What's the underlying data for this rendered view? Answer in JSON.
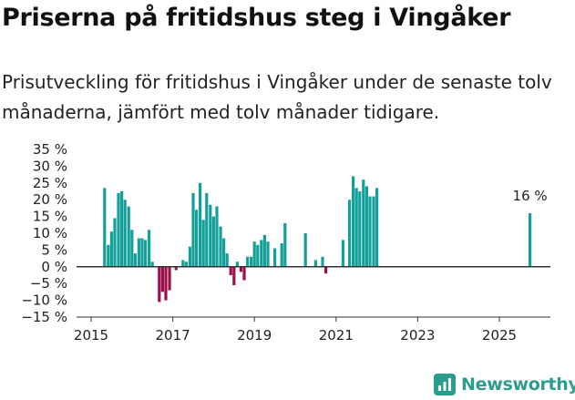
{
  "header": {
    "title": "Priserna på fritidshus steg i Vingåker",
    "subtitle": "Prisutveckling för fritidshus i Vingåker under de senaste tolv månaderna, jämfört med tolv månader tidigare."
  },
  "brand": {
    "name": "Newsworthy"
  },
  "chart_data": {
    "type": "bar",
    "x_unit": "year",
    "ylim": [
      -15,
      35
    ],
    "yticks": [
      -15,
      -10,
      -5,
      0,
      5,
      10,
      15,
      20,
      25,
      30,
      35
    ],
    "ytick_labels": [
      "−15 %",
      "−10 %",
      "−5 %",
      "0 %",
      "5 %",
      "10 %",
      "15 %",
      "20 %",
      "25 %",
      "30 %",
      "35 %"
    ],
    "xlim": [
      2014.9,
      2026.4
    ],
    "xticks": [
      2015,
      2017,
      2019,
      2021,
      2023,
      2025
    ],
    "xtick_labels": [
      "2015",
      "2017",
      "2019",
      "2021",
      "2023",
      "2025"
    ],
    "colors": {
      "positive": "#14a098",
      "negative": "#9e0e4a",
      "axis": "#333333"
    },
    "annotation": {
      "text": "16 %",
      "x": 2025.75,
      "y": 16
    },
    "bars": [
      {
        "x": 2015.33,
        "y": 23.5
      },
      {
        "x": 2015.42,
        "y": 6.5
      },
      {
        "x": 2015.5,
        "y": 10.5
      },
      {
        "x": 2015.58,
        "y": 14.5
      },
      {
        "x": 2015.67,
        "y": 22
      },
      {
        "x": 2015.75,
        "y": 22.5
      },
      {
        "x": 2015.83,
        "y": 20
      },
      {
        "x": 2015.92,
        "y": 18
      },
      {
        "x": 2016.0,
        "y": 11
      },
      {
        "x": 2016.08,
        "y": 4
      },
      {
        "x": 2016.17,
        "y": 8.5
      },
      {
        "x": 2016.25,
        "y": 8.5
      },
      {
        "x": 2016.33,
        "y": 8
      },
      {
        "x": 2016.42,
        "y": 11
      },
      {
        "x": 2016.5,
        "y": 1.5
      },
      {
        "x": 2016.67,
        "y": -10.5
      },
      {
        "x": 2016.75,
        "y": -7.5
      },
      {
        "x": 2016.83,
        "y": -10
      },
      {
        "x": 2016.92,
        "y": -7
      },
      {
        "x": 2017.08,
        "y": -1
      },
      {
        "x": 2017.25,
        "y": 2
      },
      {
        "x": 2017.33,
        "y": 1.5
      },
      {
        "x": 2017.42,
        "y": 6
      },
      {
        "x": 2017.5,
        "y": 22
      },
      {
        "x": 2017.58,
        "y": 17
      },
      {
        "x": 2017.67,
        "y": 25
      },
      {
        "x": 2017.75,
        "y": 14
      },
      {
        "x": 2017.83,
        "y": 22
      },
      {
        "x": 2017.92,
        "y": 18.5
      },
      {
        "x": 2018.0,
        "y": 15
      },
      {
        "x": 2018.08,
        "y": 18
      },
      {
        "x": 2018.17,
        "y": 12
      },
      {
        "x": 2018.25,
        "y": 8.5
      },
      {
        "x": 2018.33,
        "y": 4
      },
      {
        "x": 2018.42,
        "y": -2.5
      },
      {
        "x": 2018.5,
        "y": -5.5
      },
      {
        "x": 2018.58,
        "y": 1.5
      },
      {
        "x": 2018.67,
        "y": -1.5
      },
      {
        "x": 2018.75,
        "y": -4
      },
      {
        "x": 2018.83,
        "y": 3
      },
      {
        "x": 2018.92,
        "y": 3
      },
      {
        "x": 2019.0,
        "y": 7.5
      },
      {
        "x": 2019.08,
        "y": 6.5
      },
      {
        "x": 2019.17,
        "y": 8
      },
      {
        "x": 2019.25,
        "y": 9.5
      },
      {
        "x": 2019.33,
        "y": 7.5
      },
      {
        "x": 2019.5,
        "y": 5.5
      },
      {
        "x": 2019.67,
        "y": 7
      },
      {
        "x": 2019.75,
        "y": 13
      },
      {
        "x": 2020.25,
        "y": 10
      },
      {
        "x": 2020.5,
        "y": 2
      },
      {
        "x": 2020.67,
        "y": 3
      },
      {
        "x": 2020.75,
        "y": -2
      },
      {
        "x": 2021.17,
        "y": 8
      },
      {
        "x": 2021.33,
        "y": 20
      },
      {
        "x": 2021.42,
        "y": 27
      },
      {
        "x": 2021.5,
        "y": 23.5
      },
      {
        "x": 2021.58,
        "y": 22.5
      },
      {
        "x": 2021.67,
        "y": 26
      },
      {
        "x": 2021.75,
        "y": 24
      },
      {
        "x": 2021.83,
        "y": 21
      },
      {
        "x": 2021.92,
        "y": 21
      },
      {
        "x": 2022.0,
        "y": 23.5
      },
      {
        "x": 2025.75,
        "y": 16
      }
    ]
  }
}
